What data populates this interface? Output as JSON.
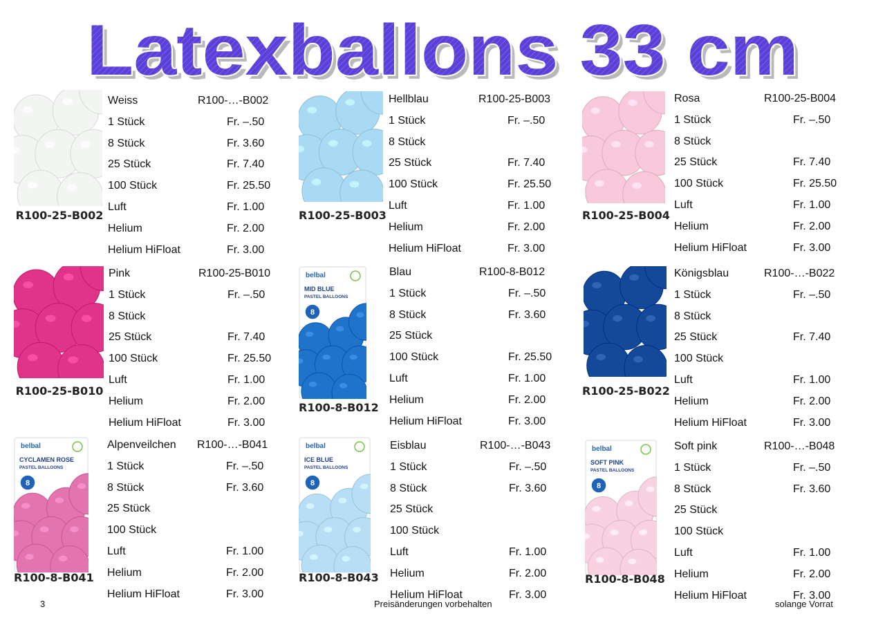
{
  "title": "Latexballons   33 cm",
  "colors": {
    "title_fill": "#5b3fd9",
    "title_outline": "#ffffff",
    "title_shadow": "#b9b9b9"
  },
  "products": [
    {
      "color_name": "Weiss",
      "code": "R100-…-B002",
      "image_label": "R100-25-B002",
      "balloon_color": "#f3f5f3",
      "rows": [
        {
          "label": "1 Stück",
          "price": "Fr. –.50"
        },
        {
          "label": "8 Stück",
          "price": "Fr. 3.60"
        },
        {
          "label": "25 Stück",
          "price": "Fr. 7.40"
        },
        {
          "label": "100 Stück",
          "price": "Fr. 25.50"
        },
        {
          "label": "Luft",
          "price": "Fr. 1.00"
        },
        {
          "label": "Helium",
          "price": "Fr. 2.00"
        },
        {
          "label": "Helium HiFloat",
          "price": "Fr. 3.00"
        }
      ]
    },
    {
      "color_name": "Hellblau",
      "code": "R100-25-B003",
      "image_label": "R100-25-B003",
      "balloon_color": "#a9daf3",
      "rows": [
        {
          "label": "1 Stück",
          "price": "Fr. –.50"
        },
        {
          "label": "8 Stück",
          "price": ""
        },
        {
          "label": "25 Stück",
          "price": "Fr. 7.40"
        },
        {
          "label": "100 Stück",
          "price": "Fr. 25.50"
        },
        {
          "label": "Luft",
          "price": "Fr. 1.00"
        },
        {
          "label": "Helium",
          "price": "Fr. 2.00"
        },
        {
          "label": "Helium HiFloat",
          "price": "Fr. 3.00"
        }
      ]
    },
    {
      "color_name": "Rosa",
      "code": "R100-25-B004",
      "image_label": "R100-25-B004",
      "balloon_color": "#f7c9da",
      "rows": [
        {
          "label": "1 Stück",
          "price": "Fr. –.50"
        },
        {
          "label": "8 Stück",
          "price": ""
        },
        {
          "label": "25 Stück",
          "price": "Fr. 7.40"
        },
        {
          "label": "100 Stück",
          "price": "Fr. 25.50"
        },
        {
          "label": "Luft",
          "price": "Fr. 1.00"
        },
        {
          "label": "Helium",
          "price": "Fr. 2.00"
        },
        {
          "label": "Helium HiFloat",
          "price": "Fr. 3.00"
        }
      ]
    },
    {
      "color_name": "Pink",
      "code": "R100-25-B010",
      "image_label": "R100-25-B010",
      "balloon_color": "#e0338a",
      "rows": [
        {
          "label": "1 Stück",
          "price": "Fr. –.50"
        },
        {
          "label": "8 Stück",
          "price": ""
        },
        {
          "label": "25 Stück",
          "price": "Fr. 7.40"
        },
        {
          "label": "100 Stück",
          "price": "Fr. 25.50"
        },
        {
          "label": "Luft",
          "price": "Fr. 1.00"
        },
        {
          "label": "Helium",
          "price": "Fr. 2.00"
        },
        {
          "label": "Helium HiFloat",
          "price": "Fr. 3.00"
        }
      ]
    },
    {
      "color_name": "Blau",
      "code": "R100-8-B012",
      "image_label": "R100-8-B012",
      "balloon_color": "#1f73c9",
      "package_brand": "belbal",
      "package_title": "MID BLUE",
      "package_subtitle": "PASTEL BALLOONS",
      "package_count": "8",
      "rows": [
        {
          "label": "1 Stück",
          "price": "Fr. –.50"
        },
        {
          "label": "8 Stück",
          "price": "Fr. 3.60"
        },
        {
          "label": "25 Stück",
          "price": ""
        },
        {
          "label": "100 Stück",
          "price": "Fr. 25.50"
        },
        {
          "label": "Luft",
          "price": "Fr. 1.00"
        },
        {
          "label": "Helium",
          "price": "Fr. 2.00"
        },
        {
          "label": "Helium HiFloat",
          "price": "Fr. 3.00"
        }
      ]
    },
    {
      "color_name": "Königsblau",
      "code": "R100-…-B022",
      "image_label": "R100-25-B022",
      "balloon_color": "#14499a",
      "rows": [
        {
          "label": "1 Stück",
          "price": "Fr. –.50"
        },
        {
          "label": "8 Stück",
          "price": ""
        },
        {
          "label": "25 Stück",
          "price": "Fr. 7.40"
        },
        {
          "label": "100 Stück",
          "price": ""
        },
        {
          "label": "Luft",
          "price": "Fr. 1.00"
        },
        {
          "label": "Helium",
          "price": "Fr. 2.00"
        },
        {
          "label": "Helium HiFloat",
          "price": "Fr. 3.00"
        }
      ]
    },
    {
      "color_name": "Alpenveilchen",
      "code": "R100-…-B041",
      "image_label": "R100-8-B041",
      "balloon_color": "#e274b0",
      "package_brand": "belbal",
      "package_title": "CYCLAMEN ROSE",
      "package_subtitle": "PASTEL BALLOONS",
      "package_count": "8",
      "rows": [
        {
          "label": "1 Stück",
          "price": "Fr. –.50"
        },
        {
          "label": "8 Stück",
          "price": "Fr. 3.60"
        },
        {
          "label": "25 Stück",
          "price": ""
        },
        {
          "label": "100 Stück",
          "price": ""
        },
        {
          "label": "Luft",
          "price": "Fr. 1.00"
        },
        {
          "label": "Helium",
          "price": "Fr. 2.00"
        },
        {
          "label": "Helium HiFloat",
          "price": "Fr. 3.00"
        }
      ]
    },
    {
      "color_name": "Eisblau",
      "code": "R100-…-B043",
      "image_label": "R100-8-B043",
      "balloon_color": "#b7def5",
      "package_brand": "belbal",
      "package_title": "ICE BLUE",
      "package_subtitle": "PASTEL BALLOONS",
      "package_count": "8",
      "rows": [
        {
          "label": "1 Stück",
          "price": "Fr. –.50"
        },
        {
          "label": "8 Stück",
          "price": "Fr. 3.60"
        },
        {
          "label": "25 Stück",
          "price": ""
        },
        {
          "label": "100 Stück",
          "price": ""
        },
        {
          "label": "Luft",
          "price": "Fr. 1.00"
        },
        {
          "label": "Helium",
          "price": "Fr. 2.00"
        },
        {
          "label": "Helium HiFloat",
          "price": "Fr. 3.00"
        }
      ]
    },
    {
      "color_name": "Soft pink",
      "code": "R100-…-B048",
      "image_label": "R100-8-B048",
      "balloon_color": "#f8d2e0",
      "package_brand": "belbal",
      "package_title": "SOFT PINK",
      "package_subtitle": "PASTEL BALLOONS",
      "package_count": "8",
      "rows": [
        {
          "label": "1 Stück",
          "price": "Fr. –.50"
        },
        {
          "label": "8 Stück",
          "price": "Fr. 3.60"
        },
        {
          "label": "25 Stück",
          "price": ""
        },
        {
          "label": "100 Stück",
          "price": ""
        },
        {
          "label": "Luft",
          "price": "Fr. 1.00"
        },
        {
          "label": "Helium",
          "price": "Fr. 2.00"
        },
        {
          "label": "Helium HiFloat",
          "price": "Fr. 3.00"
        }
      ]
    }
  ],
  "footer": {
    "page_number": "3",
    "center_note": "Preisänderungen vorbehalten",
    "right_note": "solange Vorrat"
  }
}
